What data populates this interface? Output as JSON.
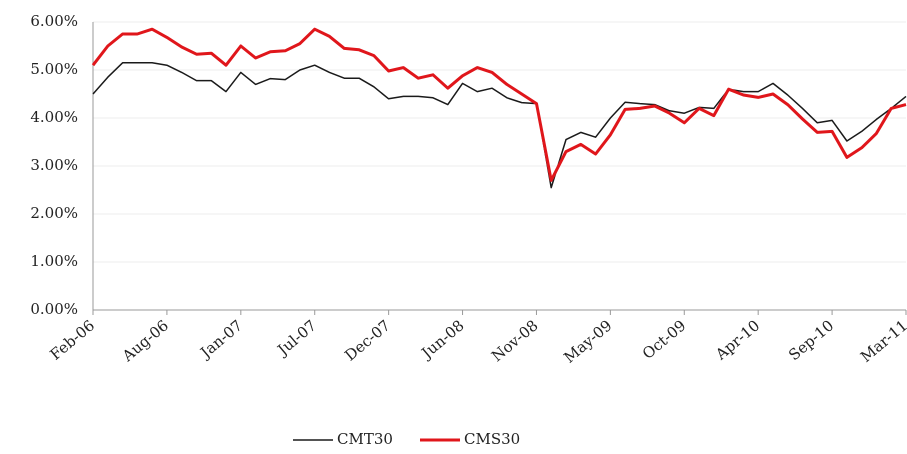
{
  "chart_data": {
    "type": "line",
    "categories": [
      "Feb-06",
      null,
      null,
      null,
      null,
      "Aug-06",
      null,
      null,
      null,
      null,
      "Jan-07",
      null,
      null,
      null,
      null,
      "Jul-07",
      null,
      null,
      null,
      null,
      "Dec-07",
      null,
      null,
      null,
      null,
      "Jun-08",
      null,
      null,
      null,
      null,
      "Nov-08",
      null,
      null,
      null,
      null,
      "May-09",
      null,
      null,
      null,
      null,
      "Oct-09",
      null,
      null,
      null,
      null,
      "Apr-10",
      null,
      null,
      null,
      null,
      "Sep-10",
      null,
      null,
      null,
      null,
      "Mar-11"
    ],
    "series": [
      {
        "name": "CMT30",
        "color": "#1a1a1a",
        "values": [
          4.5,
          4.85,
          5.15,
          5.15,
          5.15,
          5.1,
          4.95,
          4.78,
          4.78,
          4.55,
          4.95,
          4.7,
          4.82,
          4.8,
          5.0,
          5.1,
          4.95,
          4.83,
          4.83,
          4.65,
          4.4,
          4.45,
          4.45,
          4.42,
          4.28,
          4.72,
          4.55,
          4.62,
          4.42,
          4.32,
          4.3,
          2.55,
          3.55,
          3.7,
          3.6,
          4.0,
          4.33,
          4.3,
          4.28,
          4.15,
          4.1,
          4.22,
          4.2,
          4.6,
          4.55,
          4.55,
          4.72,
          4.48,
          4.2,
          3.9,
          3.95,
          3.52,
          3.72,
          3.97,
          4.2,
          4.45
        ]
      },
      {
        "name": "CMS30",
        "color": "#e0161b",
        "values": [
          5.1,
          5.5,
          5.75,
          5.75,
          5.85,
          5.68,
          5.48,
          5.33,
          5.35,
          5.1,
          5.5,
          5.25,
          5.38,
          5.4,
          5.55,
          5.85,
          5.7,
          5.45,
          5.42,
          5.3,
          4.98,
          5.05,
          4.83,
          4.9,
          4.62,
          4.88,
          5.05,
          4.95,
          4.7,
          4.5,
          4.3,
          2.7,
          3.3,
          3.45,
          3.25,
          3.65,
          4.18,
          4.2,
          4.25,
          4.1,
          3.9,
          4.2,
          4.05,
          4.6,
          4.48,
          4.43,
          4.5,
          4.28,
          3.98,
          3.7,
          3.72,
          3.18,
          3.38,
          3.68,
          4.2,
          4.28
        ]
      }
    ],
    "ylim": [
      0,
      6
    ],
    "yticks": [
      {
        "value": 0,
        "label": "0.00%"
      },
      {
        "value": 1,
        "label": "1.00%"
      },
      {
        "value": 2,
        "label": "2.00%"
      },
      {
        "value": 3,
        "label": "3.00%"
      },
      {
        "value": 4,
        "label": "4.00%"
      },
      {
        "value": 5,
        "label": "5.00%"
      },
      {
        "value": 6,
        "label": "6.00%"
      }
    ],
    "grid": true,
    "legend": "bottom"
  }
}
